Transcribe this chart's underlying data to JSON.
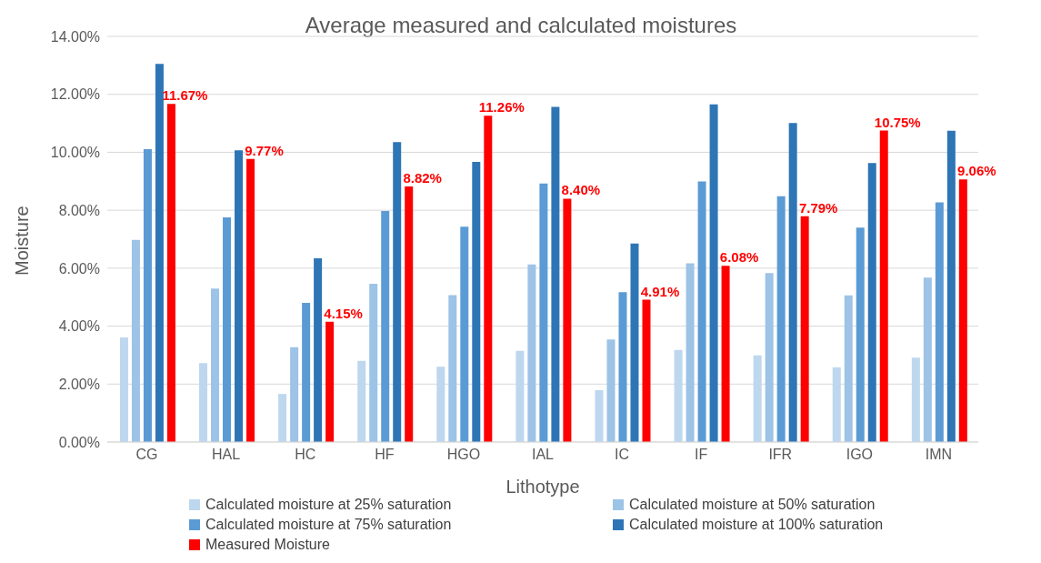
{
  "chart_data": {
    "type": "bar",
    "title": "Average measured and calculated moistures",
    "xlabel": "Lithotype",
    "ylabel": "Moisture",
    "categories": [
      "CG",
      "HAL",
      "HC",
      "HF",
      "HGO",
      "IAL",
      "IC",
      "IF",
      "IFR",
      "IGO",
      "IMN"
    ],
    "series": [
      {
        "name": "Calculated moisture at 25% saturation",
        "color": "#bdd7ee",
        "values": [
          3.61,
          2.72,
          1.66,
          2.8,
          2.6,
          3.15,
          1.79,
          3.18,
          2.99,
          2.58,
          2.91
        ]
      },
      {
        "name": "Calculated moisture at 50% saturation",
        "color": "#9dc3e6",
        "values": [
          6.98,
          5.3,
          3.27,
          5.46,
          5.07,
          6.13,
          3.54,
          6.17,
          5.83,
          5.06,
          5.67
        ]
      },
      {
        "name": "Calculated moisture at 75% saturation",
        "color": "#5b9bd5",
        "values": [
          10.11,
          7.75,
          4.8,
          7.97,
          7.43,
          8.92,
          5.17,
          8.99,
          8.48,
          7.4,
          8.27
        ]
      },
      {
        "name": "Calculated moisture at 100% saturation",
        "color": "#2e75b6",
        "values": [
          13.05,
          10.07,
          6.34,
          10.35,
          9.67,
          11.57,
          6.85,
          11.65,
          11.01,
          9.63,
          10.74
        ]
      },
      {
        "name": "Measured Moisture",
        "color": "#ff0000",
        "values": [
          11.67,
          9.77,
          4.15,
          8.82,
          11.26,
          8.4,
          4.91,
          6.08,
          7.79,
          10.75,
          9.06
        ],
        "value_labels": [
          "11.67%",
          "9.77%",
          "4.15%",
          "8.82%",
          "11.26%",
          "8.40%",
          "4.91%",
          "6.08%",
          "7.79%",
          "10.75%",
          "9.06%"
        ]
      }
    ],
    "ylim": [
      0,
      14
    ],
    "yticks": [
      {
        "value": 0,
        "label": "0.00%"
      },
      {
        "value": 2,
        "label": "2.00%"
      },
      {
        "value": 4,
        "label": "4.00%"
      },
      {
        "value": 6,
        "label": "6.00%"
      },
      {
        "value": 8,
        "label": "8.00%"
      },
      {
        "value": 10,
        "label": "10.00%"
      },
      {
        "value": 12,
        "label": "12.00%"
      },
      {
        "value": 14,
        "label": "14.00%"
      }
    ],
    "grid": "y",
    "legend": "bottom"
  }
}
